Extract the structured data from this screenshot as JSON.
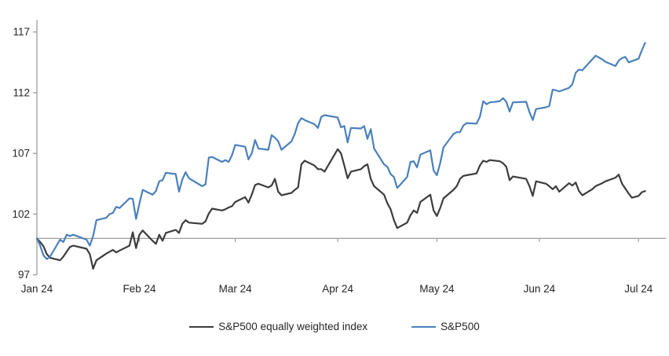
{
  "chart_data": {
    "type": "line",
    "title": "",
    "xlabel": "",
    "ylabel": "",
    "x_axis": {
      "tick_labels": [
        "Jan 24",
        "Feb 24",
        "Mar 24",
        "Apr 24",
        "May 24",
        "Jun 24",
        "Jul 24"
      ],
      "tick_days": [
        0,
        31,
        60,
        91,
        121,
        152,
        182
      ],
      "domain_days": [
        0,
        184
      ],
      "baseline_value": 100
    },
    "y_axis": {
      "ticks": [
        97,
        102,
        107,
        112,
        117
      ],
      "min": 97,
      "max": 118,
      "grid": false
    },
    "legend_position": "bottom-center",
    "series": [
      {
        "name": "S&P500 equally weighted index",
        "color": "#3d3d3d",
        "points": [
          [
            0,
            100.0
          ],
          [
            1,
            99.7
          ],
          [
            2,
            99.35
          ],
          [
            3,
            98.7
          ],
          [
            4,
            98.4
          ],
          [
            7,
            98.2
          ],
          [
            8,
            98.5
          ],
          [
            9,
            98.9
          ],
          [
            10,
            99.3
          ],
          [
            11,
            99.4
          ],
          [
            15,
            99.15
          ],
          [
            16,
            98.7
          ],
          [
            17,
            97.5
          ],
          [
            18,
            98.2
          ],
          [
            21,
            98.75
          ],
          [
            22,
            98.9
          ],
          [
            23,
            99.05
          ],
          [
            24,
            98.85
          ],
          [
            25,
            99.0
          ],
          [
            28,
            99.4
          ],
          [
            29,
            100.5
          ],
          [
            30,
            99.2
          ],
          [
            31,
            100.3
          ],
          [
            32,
            100.65
          ],
          [
            35,
            99.8
          ],
          [
            36,
            99.55
          ],
          [
            37,
            100.3
          ],
          [
            38,
            99.8
          ],
          [
            39,
            100.45
          ],
          [
            42,
            100.7
          ],
          [
            43,
            100.45
          ],
          [
            44,
            101.2
          ],
          [
            45,
            101.5
          ],
          [
            46,
            101.3
          ],
          [
            50,
            101.2
          ],
          [
            51,
            101.4
          ],
          [
            52,
            102.05
          ],
          [
            53,
            102.45
          ],
          [
            56,
            102.3
          ],
          [
            57,
            102.4
          ],
          [
            58,
            102.55
          ],
          [
            59,
            102.65
          ],
          [
            60,
            103.0
          ],
          [
            63,
            103.4
          ],
          [
            64,
            102.95
          ],
          [
            65,
            103.6
          ],
          [
            66,
            104.4
          ],
          [
            67,
            104.5
          ],
          [
            70,
            104.2
          ],
          [
            71,
            104.35
          ],
          [
            72,
            104.9
          ],
          [
            73,
            103.85
          ],
          [
            74,
            103.55
          ],
          [
            77,
            103.75
          ],
          [
            78,
            104.0
          ],
          [
            79,
            104.2
          ],
          [
            80,
            106.1
          ],
          [
            81,
            106.4
          ],
          [
            84,
            106.0
          ],
          [
            85,
            105.7
          ],
          [
            86,
            105.7
          ],
          [
            87,
            105.5
          ],
          [
            91,
            107.35
          ],
          [
            92,
            107.0
          ],
          [
            93,
            106.0
          ],
          [
            94,
            104.95
          ],
          [
            95,
            105.5
          ],
          [
            98,
            105.7
          ],
          [
            99,
            105.95
          ],
          [
            100,
            106.1
          ],
          [
            101,
            104.9
          ],
          [
            102,
            104.3
          ],
          [
            105,
            103.6
          ],
          [
            106,
            102.9
          ],
          [
            107,
            102.4
          ],
          [
            108,
            101.5
          ],
          [
            109,
            100.85
          ],
          [
            112,
            101.3
          ],
          [
            113,
            101.9
          ],
          [
            114,
            102.3
          ],
          [
            115,
            102.1
          ],
          [
            116,
            103.0
          ],
          [
            119,
            103.6
          ],
          [
            120,
            102.3
          ],
          [
            121,
            101.85
          ],
          [
            122,
            102.5
          ],
          [
            123,
            103.3
          ],
          [
            126,
            104.0
          ],
          [
            127,
            104.3
          ],
          [
            128,
            104.9
          ],
          [
            129,
            105.15
          ],
          [
            130,
            105.2
          ],
          [
            133,
            105.35
          ],
          [
            134,
            106.0
          ],
          [
            135,
            106.4
          ],
          [
            136,
            106.3
          ],
          [
            137,
            106.45
          ],
          [
            140,
            106.35
          ],
          [
            141,
            106.2
          ],
          [
            142,
            105.9
          ],
          [
            143,
            104.8
          ],
          [
            144,
            105.1
          ],
          [
            148,
            104.9
          ],
          [
            149,
            104.3
          ],
          [
            150,
            103.5
          ],
          [
            151,
            104.7
          ],
          [
            154,
            104.5
          ],
          [
            155,
            104.3
          ],
          [
            156,
            104.05
          ],
          [
            157,
            104.3
          ],
          [
            158,
            103.85
          ],
          [
            161,
            104.55
          ],
          [
            162,
            104.35
          ],
          [
            163,
            104.6
          ],
          [
            164,
            103.9
          ],
          [
            165,
            103.55
          ],
          [
            168,
            104.05
          ],
          [
            169,
            104.3
          ],
          [
            171,
            104.55
          ],
          [
            172,
            104.7
          ],
          [
            175,
            105.0
          ],
          [
            176,
            105.25
          ],
          [
            177,
            104.5
          ],
          [
            178,
            104.1
          ],
          [
            179,
            103.7
          ],
          [
            180,
            103.35
          ],
          [
            182,
            103.5
          ],
          [
            183,
            103.8
          ],
          [
            184,
            103.9
          ]
        ]
      },
      {
        "name": "S&P500",
        "color": "#4b80bc",
        "points": [
          [
            0,
            100.0
          ],
          [
            1,
            99.4
          ],
          [
            2,
            98.6
          ],
          [
            3,
            98.3
          ],
          [
            4,
            98.5
          ],
          [
            7,
            99.9
          ],
          [
            8,
            99.7
          ],
          [
            9,
            100.3
          ],
          [
            10,
            100.2
          ],
          [
            11,
            100.3
          ],
          [
            15,
            99.9
          ],
          [
            16,
            99.4
          ],
          [
            17,
            100.2
          ],
          [
            18,
            101.5
          ],
          [
            21,
            101.7
          ],
          [
            22,
            102.0
          ],
          [
            23,
            102.1
          ],
          [
            24,
            102.6
          ],
          [
            25,
            102.5
          ],
          [
            28,
            103.3
          ],
          [
            29,
            103.25
          ],
          [
            30,
            101.6
          ],
          [
            31,
            102.85
          ],
          [
            32,
            104.0
          ],
          [
            35,
            103.6
          ],
          [
            36,
            103.9
          ],
          [
            37,
            104.7
          ],
          [
            38,
            104.8
          ],
          [
            39,
            105.4
          ],
          [
            42,
            105.3
          ],
          [
            43,
            103.85
          ],
          [
            44,
            104.85
          ],
          [
            45,
            105.45
          ],
          [
            46,
            104.95
          ],
          [
            50,
            104.3
          ],
          [
            51,
            104.45
          ],
          [
            52,
            106.65
          ],
          [
            53,
            106.7
          ],
          [
            56,
            106.3
          ],
          [
            57,
            106.45
          ],
          [
            58,
            106.3
          ],
          [
            59,
            106.85
          ],
          [
            60,
            107.7
          ],
          [
            63,
            107.55
          ],
          [
            64,
            106.5
          ],
          [
            65,
            107.0
          ],
          [
            66,
            108.1
          ],
          [
            67,
            107.4
          ],
          [
            70,
            107.3
          ],
          [
            71,
            108.5
          ],
          [
            72,
            108.3
          ],
          [
            73,
            108.0
          ],
          [
            74,
            107.3
          ],
          [
            77,
            108.0
          ],
          [
            78,
            108.6
          ],
          [
            79,
            109.5
          ],
          [
            80,
            109.9
          ],
          [
            81,
            109.75
          ],
          [
            84,
            109.4
          ],
          [
            85,
            109.1
          ],
          [
            86,
            110.0
          ],
          [
            87,
            110.15
          ],
          [
            91,
            109.95
          ],
          [
            92,
            109.15
          ],
          [
            93,
            109.25
          ],
          [
            94,
            107.9
          ],
          [
            95,
            109.1
          ],
          [
            98,
            109.05
          ],
          [
            99,
            109.25
          ],
          [
            100,
            108.2
          ],
          [
            101,
            109.0
          ],
          [
            102,
            107.4
          ],
          [
            105,
            106.1
          ],
          [
            106,
            105.9
          ],
          [
            107,
            105.3
          ],
          [
            108,
            105.05
          ],
          [
            109,
            104.15
          ],
          [
            112,
            105.05
          ],
          [
            113,
            106.3
          ],
          [
            114,
            106.35
          ],
          [
            115,
            105.85
          ],
          [
            116,
            106.9
          ],
          [
            119,
            107.25
          ],
          [
            120,
            105.6
          ],
          [
            121,
            105.2
          ],
          [
            122,
            106.2
          ],
          [
            123,
            107.5
          ],
          [
            126,
            108.6
          ],
          [
            127,
            108.75
          ],
          [
            128,
            108.75
          ],
          [
            129,
            109.3
          ],
          [
            130,
            109.5
          ],
          [
            133,
            109.45
          ],
          [
            134,
            110.0
          ],
          [
            135,
            111.3
          ],
          [
            136,
            111.05
          ],
          [
            137,
            111.2
          ],
          [
            140,
            111.3
          ],
          [
            141,
            111.55
          ],
          [
            142,
            111.25
          ],
          [
            143,
            110.45
          ],
          [
            144,
            111.2
          ],
          [
            148,
            111.25
          ],
          [
            149,
            110.4
          ],
          [
            150,
            109.75
          ],
          [
            151,
            110.65
          ],
          [
            154,
            110.8
          ],
          [
            155,
            110.9
          ],
          [
            156,
            112.25
          ],
          [
            157,
            112.2
          ],
          [
            158,
            112.1
          ],
          [
            161,
            112.4
          ],
          [
            162,
            112.7
          ],
          [
            163,
            113.65
          ],
          [
            164,
            113.9
          ],
          [
            165,
            113.85
          ],
          [
            168,
            114.75
          ],
          [
            169,
            115.05
          ],
          [
            171,
            114.75
          ],
          [
            172,
            114.55
          ],
          [
            175,
            114.2
          ],
          [
            176,
            114.65
          ],
          [
            177,
            114.85
          ],
          [
            178,
            114.95
          ],
          [
            179,
            114.5
          ],
          [
            182,
            114.8
          ],
          [
            183,
            115.5
          ],
          [
            184,
            116.1
          ]
        ]
      }
    ]
  },
  "colors": {
    "axis": "#9e9e9e",
    "baseline": "#9e9e9e",
    "text": "#262626",
    "background": "#ffffff"
  },
  "legend": {
    "equal_weight_label": "S&P500 equally weighted index",
    "sp500_label": "S&P500"
  }
}
